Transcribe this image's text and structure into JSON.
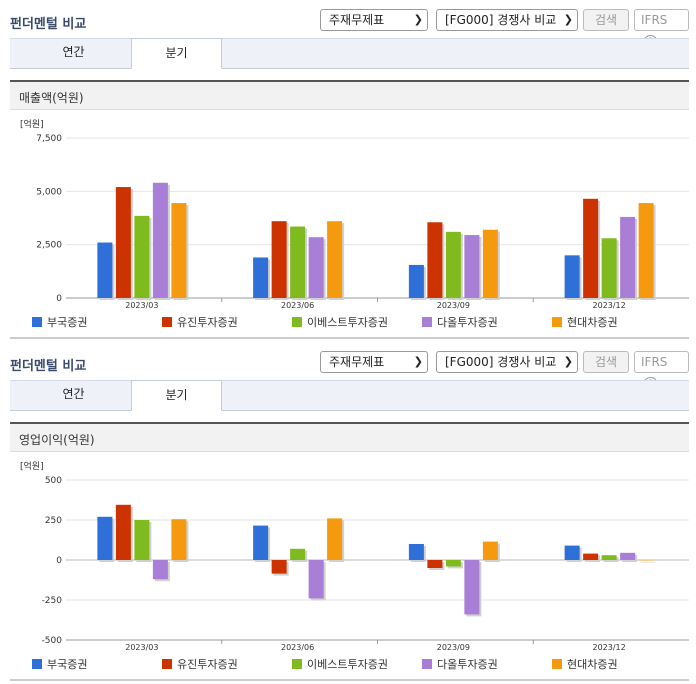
{
  "sections": [
    {
      "title": "펀더멘털 비교",
      "select_statement": "주재무제표",
      "select_compare": "[FG000] 경쟁사 비교",
      "search_label": "검색",
      "ifrs_label": "IFRS",
      "help_icon": "?",
      "tabs": [
        "연간",
        "분기"
      ],
      "active_tab": "분기",
      "panel_title": "매출액(억원)"
    },
    {
      "title": "펀더멘털 비교",
      "select_statement": "주재무제표",
      "select_compare": "[FG000] 경쟁사 비교",
      "search_label": "검색",
      "ifrs_label": "IFRS",
      "help_icon": "?",
      "tabs": [
        "연간",
        "분기"
      ],
      "active_tab": "분기",
      "panel_title": "영업이익(억원)"
    }
  ],
  "colors": [
    "#2e6fd8",
    "#cc3300",
    "#7fba1e",
    "#a87ed6",
    "#f59a0f"
  ],
  "chart_data": [
    {
      "type": "bar",
      "unit_label": "[억원]",
      "categories": [
        "2023/03",
        "2023/06",
        "2023/09",
        "2023/12"
      ],
      "ylim": [
        0,
        7500
      ],
      "yticks": [
        0,
        2500,
        5000,
        7500
      ],
      "ytick_labels": [
        "0",
        "2,500",
        "5,000",
        "7,500"
      ],
      "grid": true,
      "legend_position": "bottom",
      "series": [
        {
          "name": "부국증권",
          "values": [
            2600,
            1900,
            1550,
            2000
          ]
        },
        {
          "name": "유진투자증권",
          "values": [
            5200,
            3600,
            3550,
            4650
          ]
        },
        {
          "name": "이베스트투자증권",
          "values": [
            3850,
            3350,
            3100,
            2800
          ]
        },
        {
          "name": "다올투자증권",
          "values": [
            5400,
            2850,
            2950,
            3800
          ]
        },
        {
          "name": "현대차증권",
          "values": [
            4450,
            3600,
            3200,
            4450
          ]
        }
      ]
    },
    {
      "type": "bar",
      "unit_label": "[억원]",
      "categories": [
        "2023/03",
        "2023/06",
        "2023/09",
        "2023/12"
      ],
      "ylim": [
        -500,
        500
      ],
      "yticks": [
        -500,
        -250,
        0,
        250,
        500
      ],
      "ytick_labels": [
        "-500",
        "-250",
        "0",
        "250",
        "500"
      ],
      "grid": true,
      "legend_position": "bottom",
      "series": [
        {
          "name": "부국증권",
          "values": [
            270,
            215,
            100,
            90
          ]
        },
        {
          "name": "유진투자증권",
          "values": [
            345,
            -85,
            -50,
            40
          ]
        },
        {
          "name": "이베스트투자증권",
          "values": [
            250,
            70,
            -40,
            30
          ]
        },
        {
          "name": "다올투자증권",
          "values": [
            -120,
            -240,
            -340,
            45
          ]
        },
        {
          "name": "현대차증권",
          "values": [
            255,
            260,
            115,
            0
          ]
        }
      ]
    }
  ]
}
